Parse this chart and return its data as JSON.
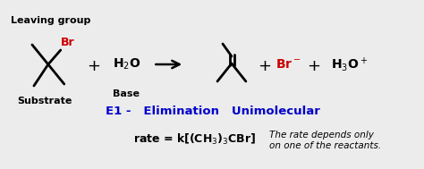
{
  "bg_color": "#ececec",
  "title_text": "E1 -   Elimination   Unimolecular",
  "title_color": "#0000cc",
  "title_fontsize": 9.5,
  "leaving_group_label": "Leaving group",
  "substrate_label": "Substrate",
  "base_label": "Base",
  "br_color": "#cc0000",
  "rate_text": "rate = k[(CH$_3$)$_3$CBr]",
  "rate_note": "The rate depends only\non one of the reactants.",
  "fig_w": 4.74,
  "fig_h": 1.89,
  "dpi": 100
}
